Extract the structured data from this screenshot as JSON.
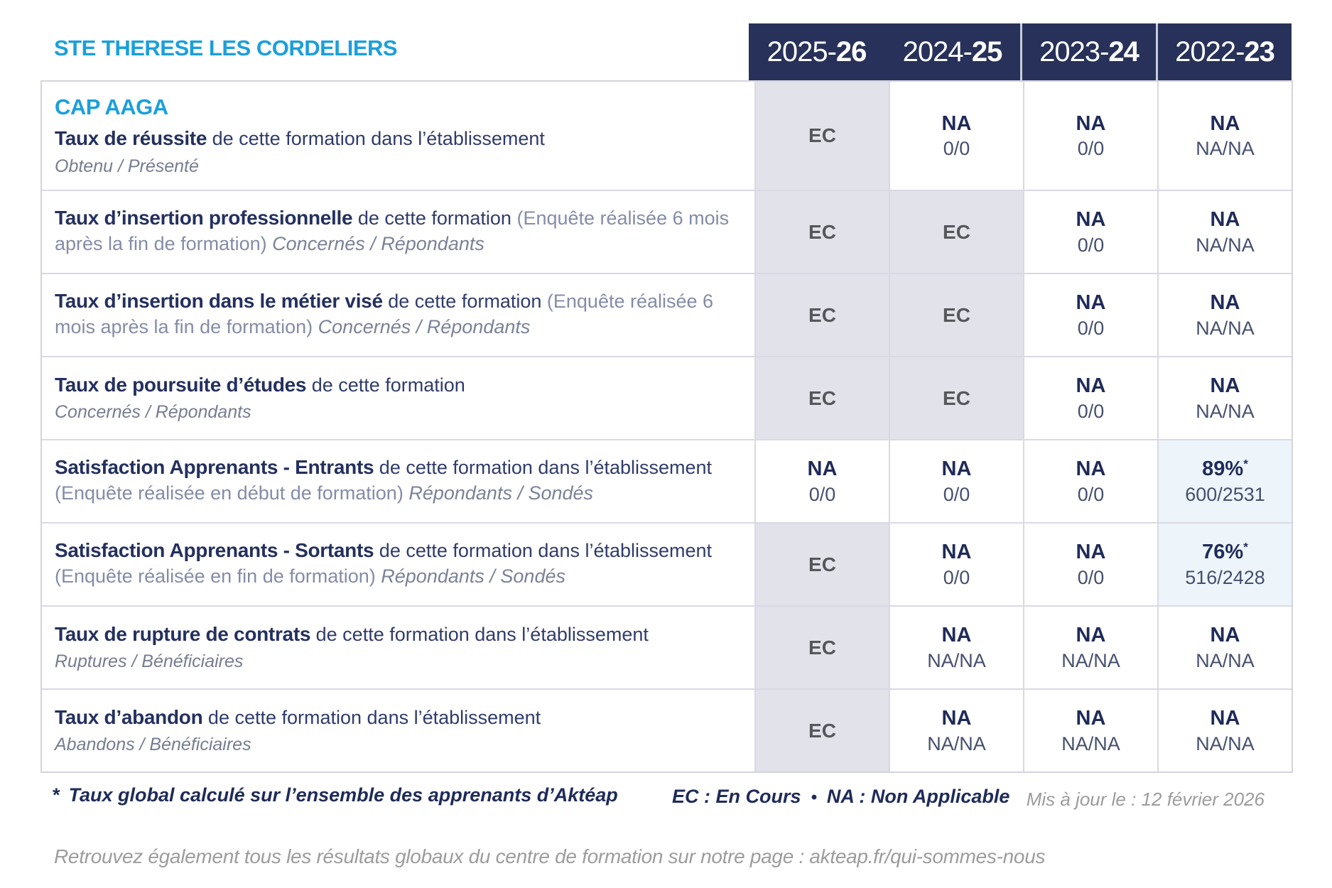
{
  "header": {
    "school": "STE THERESE LES CORDELIERS",
    "program": "CAP AAGA"
  },
  "columns": [
    {
      "prefix": "2025-",
      "bold": "26"
    },
    {
      "prefix": "2024-",
      "bold": "25"
    },
    {
      "prefix": "2023-",
      "bold": "24"
    },
    {
      "prefix": "2022-",
      "bold": "23"
    }
  ],
  "rows": [
    {
      "title": "Taux de réussite",
      "desc": "de cette formation dans l’établissement",
      "note": "",
      "sub_inline": "",
      "sub_line": "Obtenu / Présenté",
      "values": [
        {
          "type": "ec",
          "main": "EC"
        },
        {
          "type": "na",
          "main": "NA",
          "sub": "0/0"
        },
        {
          "type": "na",
          "main": "NA",
          "sub": "0/0"
        },
        {
          "type": "na",
          "main": "NA",
          "sub": "NA/NA"
        }
      ]
    },
    {
      "title": "Taux d’insertion professionnelle",
      "desc": "de cette formation",
      "note": "(Enquête réalisée 6 mois après la fin de formation)",
      "sub_inline": "Concernés / Répondants",
      "sub_line": "",
      "values": [
        {
          "type": "ec",
          "main": "EC"
        },
        {
          "type": "ec",
          "main": "EC"
        },
        {
          "type": "na",
          "main": "NA",
          "sub": "0/0"
        },
        {
          "type": "na",
          "main": "NA",
          "sub": "NA/NA"
        }
      ]
    },
    {
      "title": "Taux d’insertion dans le métier visé",
      "desc": "de cette formation",
      "note": "(Enquête réalisée 6 mois après la fin de formation)",
      "sub_inline": "Concernés / Répondants",
      "sub_line": "",
      "values": [
        {
          "type": "ec",
          "main": "EC"
        },
        {
          "type": "ec",
          "main": "EC"
        },
        {
          "type": "na",
          "main": "NA",
          "sub": "0/0"
        },
        {
          "type": "na",
          "main": "NA",
          "sub": "NA/NA"
        }
      ]
    },
    {
      "title": "Taux de poursuite d’études",
      "desc": "de cette formation",
      "note": "",
      "sub_inline": "",
      "sub_line": "Concernés / Répondants",
      "values": [
        {
          "type": "ec",
          "main": "EC"
        },
        {
          "type": "ec",
          "main": "EC"
        },
        {
          "type": "na",
          "main": "NA",
          "sub": "0/0"
        },
        {
          "type": "na",
          "main": "NA",
          "sub": "NA/NA"
        }
      ]
    },
    {
      "title": "Satisfaction Apprenants - Entrants",
      "desc": "de cette formation dans l’établissement",
      "note": "(Enquête réalisée en début de formation)",
      "sub_inline": "Répondants / Sondés",
      "sub_line": "",
      "values": [
        {
          "type": "na",
          "main": "NA",
          "sub": "0/0"
        },
        {
          "type": "na",
          "main": "NA",
          "sub": "0/0"
        },
        {
          "type": "na",
          "main": "NA",
          "sub": "0/0"
        },
        {
          "type": "pct",
          "main": "89%",
          "sup": "*",
          "sub": "600/2531"
        }
      ]
    },
    {
      "title": "Satisfaction Apprenants - Sortants",
      "desc": "de cette formation dans l’établissement",
      "note": "(Enquête réalisée en fin de formation)",
      "sub_inline": "Répondants / Sondés",
      "sub_line": "",
      "values": [
        {
          "type": "ec",
          "main": "EC"
        },
        {
          "type": "na",
          "main": "NA",
          "sub": "0/0"
        },
        {
          "type": "na",
          "main": "NA",
          "sub": "0/0"
        },
        {
          "type": "pct",
          "main": "76%",
          "sup": "*",
          "sub": "516/2428"
        }
      ]
    },
    {
      "title": "Taux de rupture de contrats",
      "desc": "de cette formation dans l’établissement",
      "note": "",
      "sub_inline": "",
      "sub_line": "Ruptures / Bénéficiaires",
      "values": [
        {
          "type": "ec",
          "main": "EC"
        },
        {
          "type": "na",
          "main": "NA",
          "sub": "NA/NA"
        },
        {
          "type": "na",
          "main": "NA",
          "sub": "NA/NA"
        },
        {
          "type": "na",
          "main": "NA",
          "sub": "NA/NA"
        }
      ]
    },
    {
      "title": "Taux d’abandon",
      "desc": "de cette formation dans l’établissement",
      "note": "",
      "sub_inline": "",
      "sub_line": "Abandons / Bénéficiaires",
      "values": [
        {
          "type": "ec",
          "main": "EC"
        },
        {
          "type": "na",
          "main": "NA",
          "sub": "NA/NA"
        },
        {
          "type": "na",
          "main": "NA",
          "sub": "NA/NA"
        },
        {
          "type": "na",
          "main": "NA",
          "sub": "NA/NA"
        }
      ]
    }
  ],
  "footer": {
    "marker": "*",
    "note": "Taux global calculé sur l’ensemble des apprenants d’Aktéap",
    "legend_ec": "EC : En Cours",
    "legend_sep": "•",
    "legend_na": "NA : Non Applicable",
    "updated": "Mis à jour le : 12 février 2026",
    "bottom": "Retrouvez également tous les résultats globaux du centre de formation sur notre page : akteap.fr/qui-sommes-nous"
  }
}
